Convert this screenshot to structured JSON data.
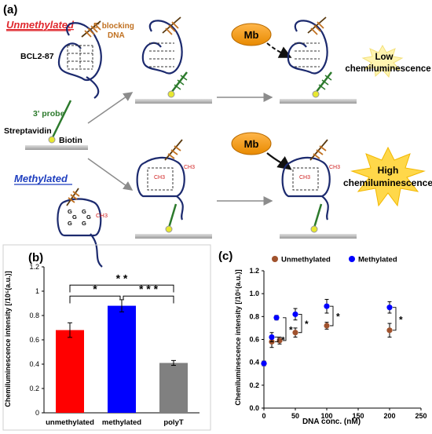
{
  "panel_a": {
    "label": "(a)",
    "unmethylated": "Unmethylated",
    "methylated": "Methylated",
    "bcl": "BCL2-87",
    "blocking_line1": "5' blocking",
    "blocking_line2": "DNA",
    "probe": "3' probe",
    "streptavidin": "Streptavidin",
    "biotin": "Biotin",
    "mb": "Mb",
    "low_line1": "Low",
    "low_line2": "chemiluminescence",
    "high_line1": "High",
    "high_line2": "chemiluminescence",
    "ch3": "CH3",
    "g": "G"
  },
  "panel_b": {
    "label": "(b)",
    "star1": "*",
    "star2": "* *",
    "star3": "* * *"
  },
  "panel_c": {
    "label": "(c)",
    "star": "*"
  },
  "chart_data": [
    {
      "type": "bar",
      "categories": [
        "unmethylated",
        "methylated",
        "polyT"
      ],
      "values": [
        0.68,
        0.88,
        0.41
      ],
      "errors": [
        0.06,
        0.05,
        0.02
      ],
      "colors": [
        "#ff0000",
        "#0000ff",
        "#808080"
      ],
      "ylabel": "Chemiluminescence intensity [/10⁵(a.u.)]",
      "ylim": [
        0,
        1.2
      ],
      "yticks": [
        "0",
        "0.2",
        "0.4",
        "0.6",
        "0.8",
        "1",
        "1.2"
      ]
    },
    {
      "type": "scatter",
      "xlabel": "DNA conc. (nM)",
      "ylabel": "Chemiluminescence intensity [/10⁵(a.u.)]",
      "xlim": [
        0,
        250
      ],
      "ylim": [
        0,
        1.2
      ],
      "xticks": [
        "0",
        "50",
        "100",
        "150",
        "200",
        "250"
      ],
      "yticks": [
        "0.0",
        "0.2",
        "0.4",
        "0.6",
        "0.8",
        "1.0",
        "1.2"
      ],
      "legend": "top",
      "series": [
        {
          "name": "Unmethylated",
          "color": "#a0522d",
          "x": [
            0,
            12.5,
            25,
            50,
            100,
            200
          ],
          "y": [
            0.39,
            0.58,
            0.59,
            0.66,
            0.72,
            0.68
          ],
          "err": [
            0.02,
            0.05,
            0.03,
            0.04,
            0.03,
            0.06
          ]
        },
        {
          "name": "Methylated",
          "color": "#0000ff",
          "x": [
            0,
            12.5,
            25,
            50,
            100,
            200
          ],
          "y": [
            0.39,
            0.62,
            0.79,
            0.82,
            0.89,
            0.88
          ],
          "err": [
            0.02,
            0.04,
            0.02,
            0.05,
            0.06,
            0.05
          ]
        }
      ]
    }
  ]
}
